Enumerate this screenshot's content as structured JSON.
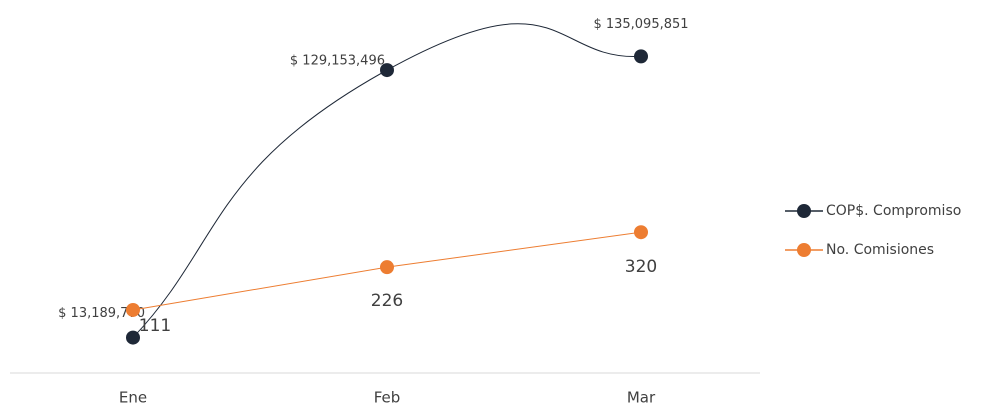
{
  "chart_data": {
    "type": "line",
    "categories": [
      "Ene",
      "Feb",
      "Mar"
    ],
    "series": [
      {
        "name": "COP$. Compromiso",
        "color": "#1e2837",
        "smooth": true,
        "values": [
          13189770,
          129153496,
          135095851
        ],
        "value_labels": [
          "$ 13,189,770",
          "$ 129,153,496",
          "$ 135,095,851"
        ]
      },
      {
        "name": "No.  Comisiones",
        "color": "#ed7d31",
        "axis": "y2",
        "values": [
          111,
          226,
          320
        ]
      }
    ],
    "ylim": [
      0,
      150000000
    ],
    "y2lim": [
      -45,
      885
    ],
    "legend": "right"
  }
}
